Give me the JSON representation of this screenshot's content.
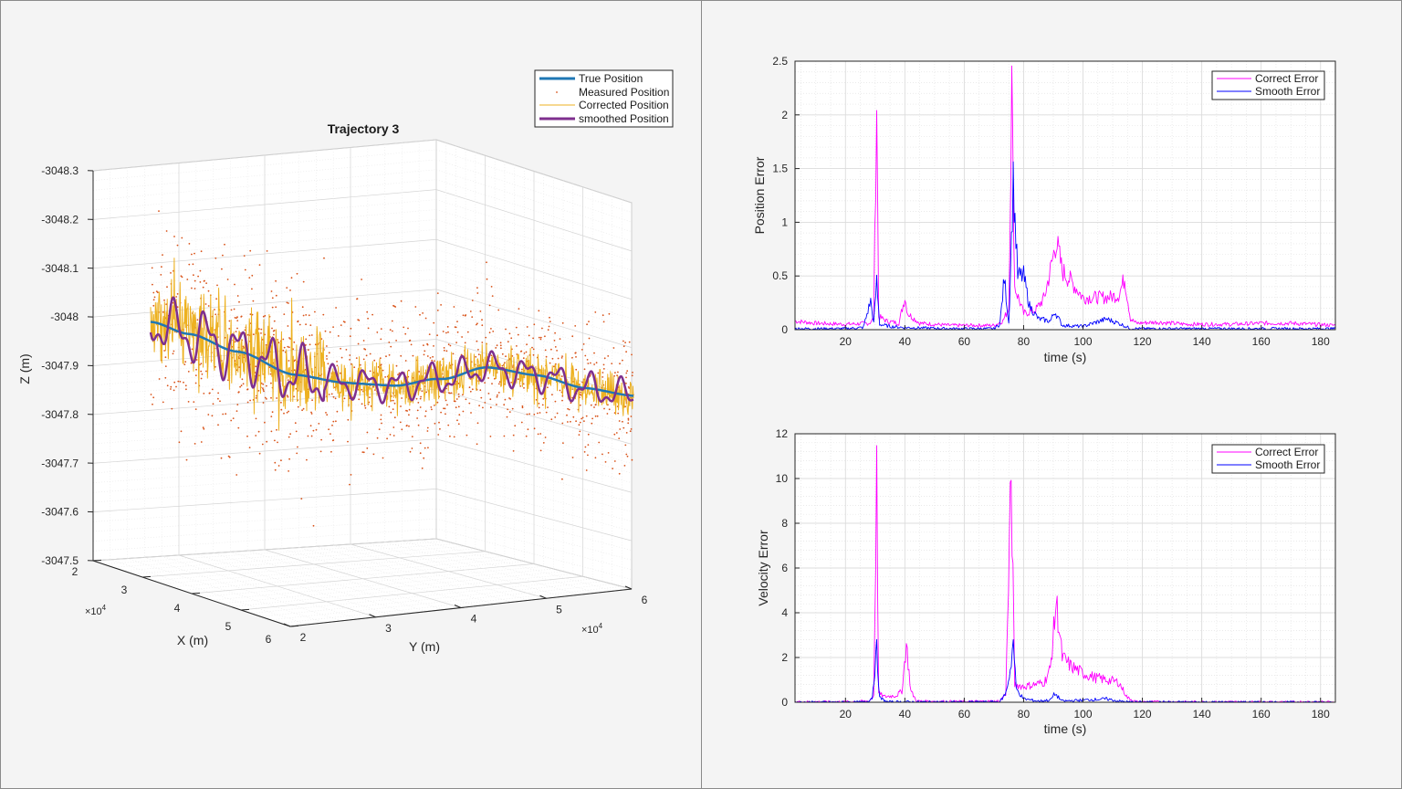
{
  "colors": {
    "true_position": "#1f77b4",
    "measured_position": "#d95319",
    "corrected_position": "#edb120",
    "smoothed_position": "#7e2f8e",
    "correct_error": "#ff00ff",
    "smooth_error": "#0000ff"
  },
  "chart_data": [
    {
      "id": "trajectory",
      "type": "line3d",
      "title": "Trajectory 3",
      "xlabel": "X (m)",
      "ylabel": "Y (m)",
      "zlabel": "Z (m)",
      "x_exponent": "×10",
      "x_exponent_power": "4",
      "y_exponent": "×10",
      "y_exponent_power": "4",
      "x_ticks": [
        "2",
        "3",
        "4",
        "5",
        "6"
      ],
      "y_ticks": [
        "2",
        "3",
        "4",
        "5",
        "6"
      ],
      "z_ticks": [
        "-3047.5",
        "-3047.6",
        "-3047.7",
        "-3047.8",
        "-3047.9",
        "-3048",
        "-3048.1",
        "-3048.2",
        "-3048.3"
      ],
      "xlim": [
        20000,
        60000
      ],
      "ylim": [
        20000,
        60000
      ],
      "zlim": [
        -3047.5,
        -3048.3
      ],
      "grid": true,
      "legend_position": "top-right",
      "series": [
        {
          "name": "True Position",
          "key": "true_position"
        },
        {
          "name": "Measured Position",
          "key": "measured_position"
        },
        {
          "name": "Corrected Position",
          "key": "corrected_position"
        },
        {
          "name": "smoothed Position",
          "key": "smoothed_position"
        }
      ],
      "true_position_z": [
        {
          "t": 0.0,
          "z": -3047.99
        },
        {
          "t": 0.08,
          "z": -3047.97
        },
        {
          "t": 0.18,
          "z": -3047.94
        },
        {
          "t": 0.3,
          "z": -3047.9
        },
        {
          "t": 0.4,
          "z": -3047.89
        },
        {
          "t": 0.5,
          "z": -3047.89
        },
        {
          "t": 0.6,
          "z": -3047.91
        },
        {
          "t": 0.7,
          "z": -3047.94
        },
        {
          "t": 0.8,
          "z": -3047.93
        },
        {
          "t": 0.9,
          "z": -3047.91
        },
        {
          "t": 1.0,
          "z": -3047.9
        }
      ]
    },
    {
      "id": "position-error",
      "type": "line",
      "xlabel": "time (s)",
      "ylabel": "Position Error",
      "xlim": [
        3,
        185
      ],
      "ylim": [
        0,
        2.5
      ],
      "x_ticks": [
        20,
        40,
        60,
        80,
        100,
        120,
        140,
        160,
        180
      ],
      "y_ticks": [
        0,
        0.5,
        1,
        1.5,
        2,
        2.5
      ],
      "y_tick_labels": [
        "0",
        "0.5",
        "1",
        "1.5",
        "2",
        "2.5"
      ],
      "grid": true,
      "legend_position": "top-right",
      "series": [
        {
          "name": "Correct Error",
          "key": "correct_error",
          "points": [
            [
              3,
              0.08
            ],
            [
              10,
              0.06
            ],
            [
              20,
              0.05
            ],
            [
              28,
              0.06
            ],
            [
              29.5,
              0.1
            ],
            [
              30.5,
              2.15
            ],
            [
              31.2,
              0.12
            ],
            [
              34,
              0.08
            ],
            [
              38,
              0.06
            ],
            [
              40,
              0.3
            ],
            [
              41,
              0.15
            ],
            [
              45,
              0.06
            ],
            [
              55,
              0.04
            ],
            [
              65,
              0.04
            ],
            [
              70,
              0.04
            ],
            [
              73,
              0.08
            ],
            [
              75,
              0.2
            ],
            [
              76,
              2.27
            ],
            [
              77,
              0.4
            ],
            [
              80,
              0.15
            ],
            [
              84,
              0.18
            ],
            [
              87,
              0.3
            ],
            [
              89,
              0.55
            ],
            [
              91,
              0.83
            ],
            [
              93,
              0.55
            ],
            [
              96,
              0.45
            ],
            [
              100,
              0.3
            ],
            [
              104,
              0.3
            ],
            [
              108,
              0.3
            ],
            [
              112,
              0.32
            ],
            [
              114,
              0.48
            ],
            [
              116,
              0.1
            ],
            [
              118,
              0.06
            ],
            [
              125,
              0.07
            ],
            [
              135,
              0.05
            ],
            [
              150,
              0.05
            ],
            [
              160,
              0.06
            ],
            [
              170,
              0.06
            ],
            [
              185,
              0.04
            ]
          ]
        },
        {
          "name": "Smooth Error",
          "key": "smooth_error",
          "points": [
            [
              3,
              0.01
            ],
            [
              20,
              0.01
            ],
            [
              26,
              0.02
            ],
            [
              28.5,
              0.27
            ],
            [
              29.5,
              0.06
            ],
            [
              30.5,
              0.45
            ],
            [
              31.5,
              0.05
            ],
            [
              35,
              0.03
            ],
            [
              40,
              0.02
            ],
            [
              55,
              0.01
            ],
            [
              70,
              0.01
            ],
            [
              72,
              0.05
            ],
            [
              73.5,
              0.48
            ],
            [
              75,
              0.06
            ],
            [
              76.5,
              1.37
            ],
            [
              78,
              0.5
            ],
            [
              80,
              0.5
            ],
            [
              82,
              0.22
            ],
            [
              85,
              0.1
            ],
            [
              89,
              0.08
            ],
            [
              90.5,
              0.17
            ],
            [
              93,
              0.04
            ],
            [
              100,
              0.03
            ],
            [
              108,
              0.1
            ],
            [
              112,
              0.06
            ],
            [
              116,
              0.01
            ],
            [
              130,
              0.01
            ],
            [
              185,
              0.01
            ]
          ]
        }
      ]
    },
    {
      "id": "velocity-error",
      "type": "line",
      "xlabel": "time (s)",
      "ylabel": "Velocity Error",
      "xlim": [
        3,
        185
      ],
      "ylim": [
        0,
        12
      ],
      "x_ticks": [
        20,
        40,
        60,
        80,
        100,
        120,
        140,
        160,
        180
      ],
      "y_ticks": [
        0,
        2,
        4,
        6,
        8,
        10,
        12
      ],
      "y_tick_labels": [
        "0",
        "2",
        "4",
        "6",
        "8",
        "10",
        "12"
      ],
      "grid": true,
      "legend_position": "top-right",
      "series": [
        {
          "name": "Correct Error",
          "key": "correct_error",
          "points": [
            [
              3,
              0.02
            ],
            [
              20,
              0.02
            ],
            [
              28,
              0.05
            ],
            [
              29.5,
              0.3
            ],
            [
              30.5,
              10.1
            ],
            [
              31.2,
              0.4
            ],
            [
              33,
              0.25
            ],
            [
              37,
              0.3
            ],
            [
              39,
              0.5
            ],
            [
              40.5,
              2.6
            ],
            [
              42,
              0.5
            ],
            [
              44,
              0.05
            ],
            [
              60,
              0.03
            ],
            [
              72,
              0.05
            ],
            [
              74,
              0.4
            ],
            [
              75.8,
              10.0
            ],
            [
              77,
              0.8
            ],
            [
              80,
              0.7
            ],
            [
              84,
              0.8
            ],
            [
              87,
              0.9
            ],
            [
              89,
              1.5
            ],
            [
              91,
              4.5
            ],
            [
              93,
              2.0
            ],
            [
              96,
              1.6
            ],
            [
              100,
              1.3
            ],
            [
              104,
              1.1
            ],
            [
              108,
              1.0
            ],
            [
              112,
              0.9
            ],
            [
              115,
              0.2
            ],
            [
              118,
              0.02
            ],
            [
              185,
              0.01
            ]
          ]
        },
        {
          "name": "Smooth Error",
          "key": "smooth_error",
          "points": [
            [
              3,
              0.0
            ],
            [
              27,
              0.01
            ],
            [
              29,
              0.2
            ],
            [
              30.5,
              2.35
            ],
            [
              31.5,
              0.2
            ],
            [
              34,
              0.02
            ],
            [
              60,
              0.01
            ],
            [
              72,
              0.02
            ],
            [
              74,
              0.4
            ],
            [
              75.5,
              1.4
            ],
            [
              76.5,
              2.7
            ],
            [
              77.5,
              0.6
            ],
            [
              80,
              0.15
            ],
            [
              85,
              0.05
            ],
            [
              89,
              0.1
            ],
            [
              90.5,
              0.38
            ],
            [
              93,
              0.05
            ],
            [
              108,
              0.15
            ],
            [
              112,
              0.05
            ],
            [
              116,
              0.01
            ],
            [
              185,
              0.0
            ]
          ]
        }
      ]
    }
  ]
}
